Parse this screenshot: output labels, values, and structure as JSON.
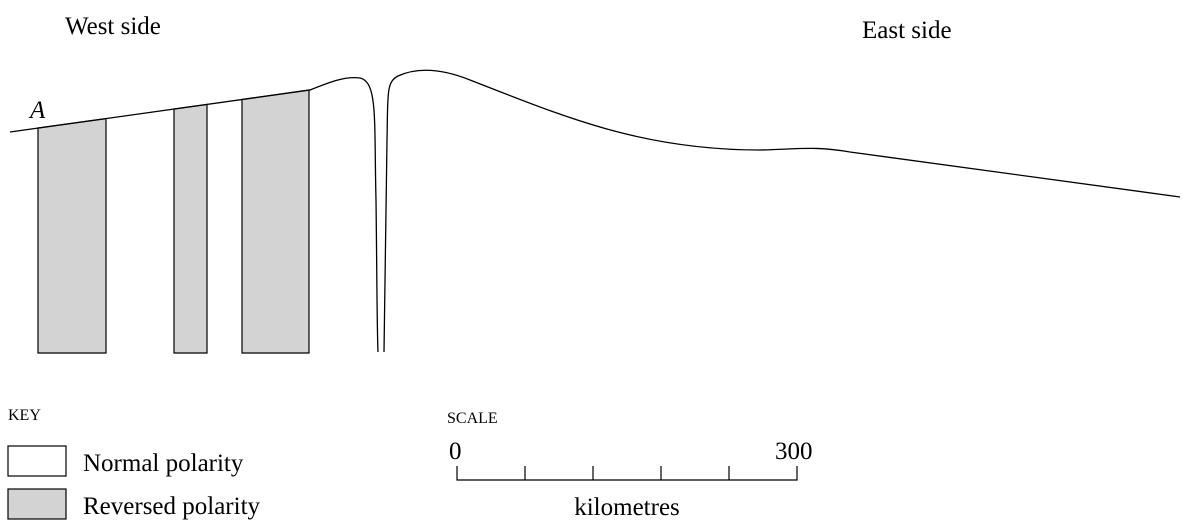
{
  "labels": {
    "west": "West side",
    "east": "East side",
    "point": "A"
  },
  "key": {
    "title": "KEY",
    "items": [
      "Normal polarity",
      "Reversed polarity"
    ]
  },
  "scale": {
    "title": "SCALE",
    "start": 0,
    "end": 300,
    "unit": "kilometres"
  }
}
